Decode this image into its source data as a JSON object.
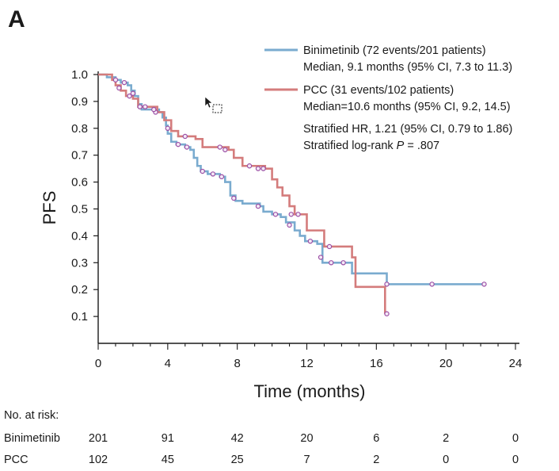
{
  "panel_label": "A",
  "chart_data": {
    "type": "line",
    "subtype": "kaplan-meier",
    "ylabel": "PFS",
    "xlabel": "Time (months)",
    "xlim": [
      0,
      24
    ],
    "ylim": [
      0,
      1.0
    ],
    "x_ticks": [
      0,
      4,
      8,
      12,
      16,
      20,
      24
    ],
    "y_ticks": [
      1.0,
      0.9,
      0.8,
      0.7,
      0.6,
      0.5,
      0.4,
      0.3,
      0.2,
      0.1
    ],
    "y_tick_labels": [
      "1.0",
      "0.9",
      "0.8",
      "0.7",
      "0.6",
      "0.5",
      "0.4",
      "0.3",
      "0.2",
      "0.1"
    ],
    "series": [
      {
        "name": "Binimetinib",
        "color": "#7aabcf",
        "legend_line1": "Binimetinib (72 events/201 patients)",
        "legend_line2": "Median, 9.1 months (95% CI, 7.3 to 11.3)",
        "steps": [
          [
            0,
            1.0
          ],
          [
            0.5,
            0.99
          ],
          [
            1.0,
            0.98
          ],
          [
            1.3,
            0.97
          ],
          [
            1.7,
            0.96
          ],
          [
            1.9,
            0.94
          ],
          [
            2.1,
            0.92
          ],
          [
            2.3,
            0.89
          ],
          [
            2.5,
            0.87
          ],
          [
            3.0,
            0.87
          ],
          [
            3.5,
            0.86
          ],
          [
            3.7,
            0.84
          ],
          [
            3.9,
            0.81
          ],
          [
            4.0,
            0.78
          ],
          [
            4.2,
            0.75
          ],
          [
            4.5,
            0.74
          ],
          [
            5.0,
            0.73
          ],
          [
            5.3,
            0.72
          ],
          [
            5.5,
            0.69
          ],
          [
            5.7,
            0.66
          ],
          [
            5.9,
            0.64
          ],
          [
            6.3,
            0.63
          ],
          [
            7.0,
            0.62
          ],
          [
            7.3,
            0.6
          ],
          [
            7.6,
            0.55
          ],
          [
            7.9,
            0.53
          ],
          [
            8.3,
            0.52
          ],
          [
            9.0,
            0.52
          ],
          [
            9.3,
            0.51
          ],
          [
            9.5,
            0.49
          ],
          [
            10.0,
            0.48
          ],
          [
            10.5,
            0.47
          ],
          [
            10.8,
            0.45
          ],
          [
            11.3,
            0.42
          ],
          [
            11.6,
            0.4
          ],
          [
            11.9,
            0.38
          ],
          [
            12.6,
            0.37
          ],
          [
            12.9,
            0.31
          ],
          [
            12.9,
            0.3
          ],
          [
            14.3,
            0.3
          ],
          [
            14.6,
            0.26
          ],
          [
            16.6,
            0.26
          ],
          [
            16.6,
            0.22
          ],
          [
            22.2,
            0.22
          ]
        ],
        "censor_points": [
          [
            1.0,
            0.98
          ],
          [
            1.5,
            0.97
          ],
          [
            2.0,
            0.93
          ],
          [
            3.3,
            0.86
          ],
          [
            4.6,
            0.74
          ],
          [
            5.1,
            0.73
          ],
          [
            6.0,
            0.64
          ],
          [
            6.6,
            0.63
          ],
          [
            7.1,
            0.62
          ],
          [
            7.8,
            0.54
          ],
          [
            9.2,
            0.51
          ],
          [
            10.2,
            0.48
          ],
          [
            11.0,
            0.44
          ],
          [
            12.2,
            0.38
          ],
          [
            12.8,
            0.32
          ],
          [
            13.4,
            0.3
          ],
          [
            14.1,
            0.3
          ],
          [
            16.6,
            0.22
          ],
          [
            19.2,
            0.22
          ],
          [
            22.2,
            0.22
          ]
        ]
      },
      {
        "name": "PCC",
        "color": "#d47c7c",
        "legend_line1": "PCC (31 events/102 patients)",
        "legend_line2": "Median=10.6 months (95% CI, 9.2, 14.5)",
        "steps": [
          [
            0,
            1.0
          ],
          [
            0.8,
            0.98
          ],
          [
            1.0,
            0.96
          ],
          [
            1.3,
            0.94
          ],
          [
            1.6,
            0.92
          ],
          [
            2.0,
            0.91
          ],
          [
            2.3,
            0.88
          ],
          [
            2.9,
            0.88
          ],
          [
            3.4,
            0.86
          ],
          [
            3.8,
            0.83
          ],
          [
            4.2,
            0.79
          ],
          [
            4.6,
            0.77
          ],
          [
            5.6,
            0.76
          ],
          [
            6.0,
            0.73
          ],
          [
            7.5,
            0.72
          ],
          [
            7.8,
            0.69
          ],
          [
            8.3,
            0.66
          ],
          [
            9.6,
            0.65
          ],
          [
            10.0,
            0.61
          ],
          [
            10.3,
            0.58
          ],
          [
            10.6,
            0.55
          ],
          [
            11.0,
            0.51
          ],
          [
            11.3,
            0.48
          ],
          [
            12.0,
            0.42
          ],
          [
            12.9,
            0.42
          ],
          [
            13.0,
            0.36
          ],
          [
            14.6,
            0.32
          ],
          [
            14.8,
            0.21
          ],
          [
            16.3,
            0.21
          ],
          [
            16.5,
            0.11
          ]
        ],
        "censor_points": [
          [
            1.2,
            0.95
          ],
          [
            1.8,
            0.92
          ],
          [
            2.4,
            0.88
          ],
          [
            2.7,
            0.88
          ],
          [
            3.2,
            0.87
          ],
          [
            4.0,
            0.8
          ],
          [
            5.0,
            0.77
          ],
          [
            7.0,
            0.73
          ],
          [
            7.3,
            0.72
          ],
          [
            8.7,
            0.66
          ],
          [
            9.2,
            0.65
          ],
          [
            9.5,
            0.65
          ],
          [
            11.1,
            0.48
          ],
          [
            11.5,
            0.48
          ],
          [
            13.3,
            0.36
          ],
          [
            16.6,
            0.11
          ]
        ]
      }
    ],
    "annotations": {
      "hr_line": "Stratified HR, 1.21 (95% CI, 0.79 to 1.86)",
      "logrank_prefix": "Stratified log-rank ",
      "logrank_p_symbol": "P",
      "logrank_value": " = .807"
    },
    "censor_marker_color": "#9b4fa5",
    "risk_table": {
      "title": "No. at risk:",
      "rows": [
        {
          "label": "Binimetinib",
          "values": [
            "201",
            "91",
            "42",
            "20",
            "6",
            "2",
            "0"
          ]
        },
        {
          "label": "PCC",
          "values": [
            "102",
            "45",
            "25",
            "7",
            "2",
            "0",
            "0"
          ]
        }
      ]
    }
  }
}
